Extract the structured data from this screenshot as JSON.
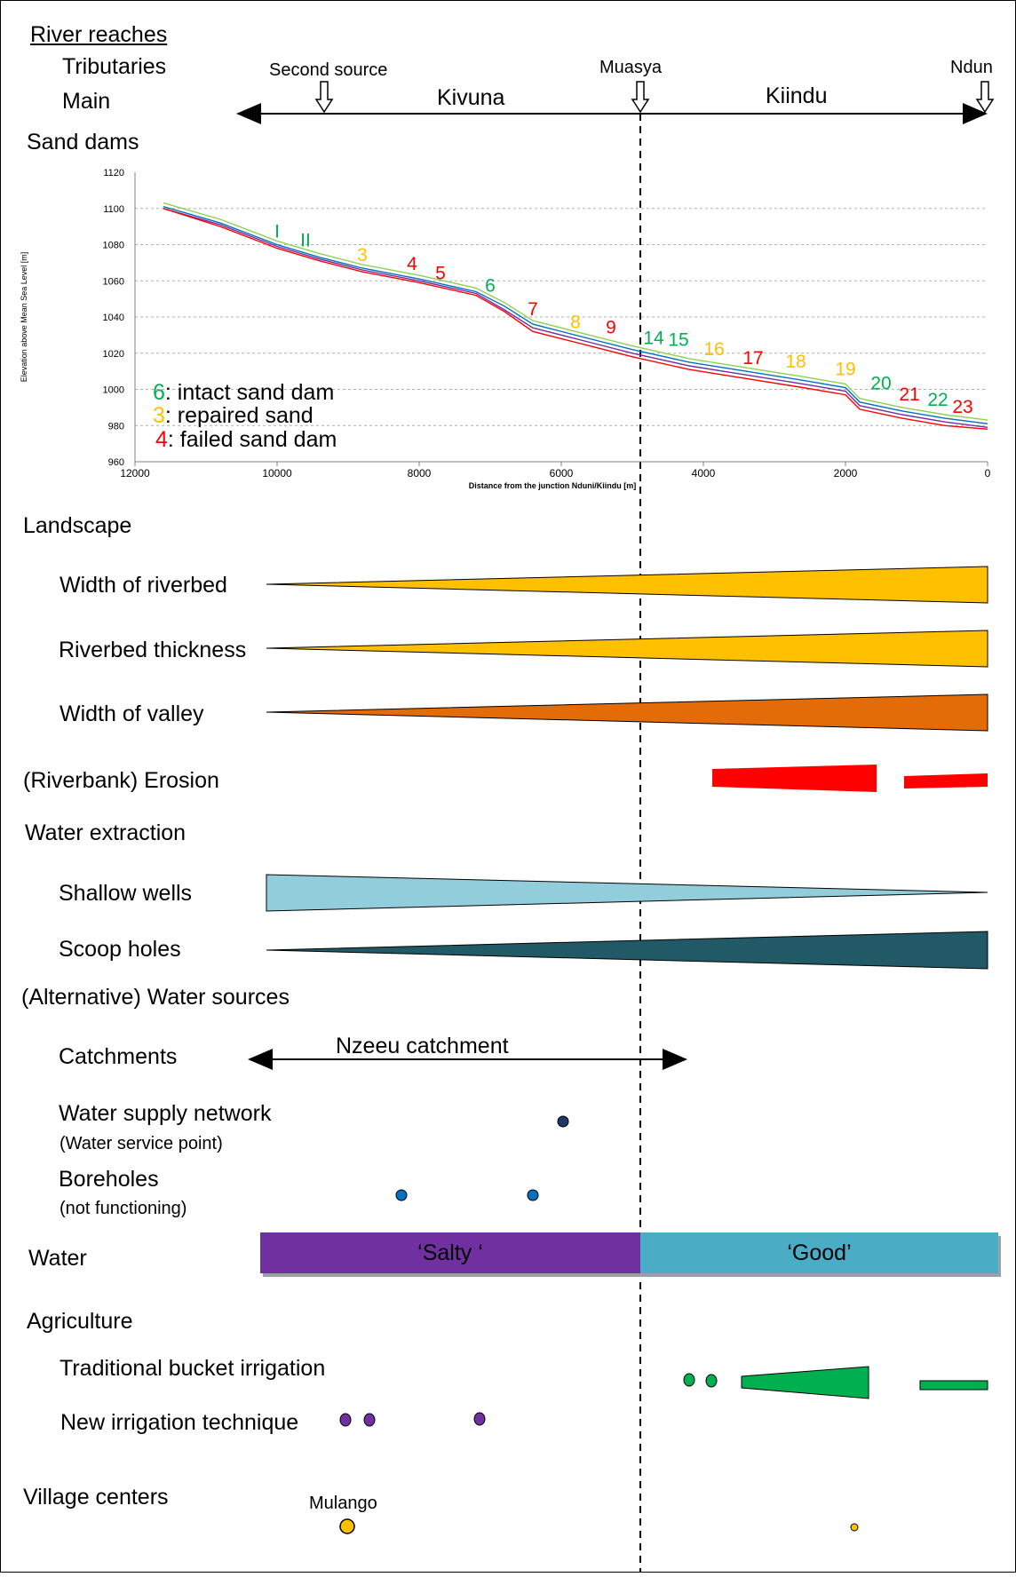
{
  "sections": {
    "river_reaches": "River reaches",
    "tributaries": "Tributaries",
    "main": "Main",
    "sand_dams": "Sand dams",
    "landscape": "Landscape",
    "width_riverbed": "Width of riverbed",
    "riverbed_thickness": "Riverbed thickness",
    "width_valley": "Width of valley",
    "erosion": "(Riverbank) Erosion",
    "water_extraction": "Water extraction",
    "shallow_wells": "Shallow wells",
    "scoop_holes": "Scoop holes",
    "alt_water": "(Alternative) Water sources",
    "catchments": "Catchments",
    "water_supply": "Water supply network",
    "water_supply_sub": "(Water service point)",
    "boreholes": "Boreholes",
    "boreholes_sub": "(not functioning)",
    "water": "Water",
    "agriculture": "Agriculture",
    "bucket_irrigation": "Traditional bucket irrigation",
    "new_irrigation": "New irrigation technique",
    "village_centers": "Village centers"
  },
  "river": {
    "second_source": "Second source",
    "muasya": "Muasya",
    "nduni": "Ndun",
    "kivuna": "Kivuna",
    "kiindu": "Kiindu"
  },
  "catchment_label": "Nzeeu catchment",
  "water_quality": {
    "salty": "‘Salty ‘",
    "good": "‘Good’",
    "salty_color": "#7030a0",
    "good_color": "#4bacc6"
  },
  "village": {
    "mulango": "Mulango"
  },
  "legend": {
    "intact_num": "6",
    "intact_text": ": intact sand dam",
    "repaired_num": "3",
    "repaired_text": ": repaired sand",
    "failed_num": "4",
    "failed_text": ": failed sand dam"
  },
  "colors": {
    "intact": "#00b050",
    "repaired": "#ffc000",
    "failed": "#ff0000",
    "riverbed": "#ffc000",
    "valley": "#e36c09",
    "erosion": "#ff0000",
    "wells": "#92cddc",
    "scoop": "#215967",
    "bucket": "#00b050",
    "new_irrigation": "#7030a0",
    "borehole": "#0070c0",
    "supply_point": "#1f3864",
    "village": "#ffc000"
  },
  "chart_data": {
    "type": "line",
    "title": "",
    "xlabel": "Distance from the junction Nduni/Kiindu [m]",
    "ylabel": "Elevation above Mean Sea Level [m]",
    "xlim": [
      12000,
      0
    ],
    "ylim": [
      960,
      1120
    ],
    "x_ticks": [
      "12000",
      "10000",
      "8000",
      "6000",
      "4000",
      "2000",
      "0"
    ],
    "y_ticks": [
      "960",
      "980",
      "1000",
      "1020",
      "1040",
      "1060",
      "1080",
      "1100",
      "1120"
    ],
    "grid": true,
    "series": [
      {
        "color": "#92d050",
        "x": [
          11600,
          10800,
          10000,
          9400,
          8800,
          8000,
          7200,
          6800,
          6400,
          5600,
          5000,
          4200,
          3400,
          2600,
          2000,
          1800,
          1200,
          600,
          0
        ],
        "y": [
          1103,
          1094,
          1082,
          1075,
          1069,
          1063,
          1056,
          1048,
          1038,
          1030,
          1024,
          1017,
          1012,
          1007,
          1003,
          995,
          990,
          986,
          983
        ]
      },
      {
        "color": "#0070c0",
        "x": [
          11600,
          10800,
          10000,
          9400,
          8800,
          8000,
          7200,
          6800,
          6400,
          5600,
          5000,
          4200,
          3400,
          2600,
          2000,
          1800,
          1200,
          600,
          0
        ],
        "y": [
          1101,
          1092,
          1080,
          1073,
          1067,
          1061,
          1054,
          1046,
          1036,
          1028,
          1022,
          1015,
          1010,
          1005,
          1001,
          993,
          988,
          984,
          981
        ]
      },
      {
        "color": "#7030a0",
        "x": [
          11600,
          10800,
          10000,
          9400,
          8800,
          8000,
          7200,
          6800,
          6400,
          5600,
          5000,
          4200,
          3400,
          2600,
          2000,
          1800,
          1200,
          600,
          0
        ],
        "y": [
          1100,
          1091,
          1079,
          1072,
          1066,
          1060,
          1053,
          1044,
          1034,
          1026,
          1020,
          1013,
          1008,
          1003,
          999,
          991,
          986,
          982,
          979
        ]
      },
      {
        "color": "#ff0000",
        "x": [
          11600,
          10800,
          10000,
          9400,
          8800,
          8000,
          7200,
          6800,
          6400,
          5600,
          5000,
          4200,
          3400,
          2600,
          2000,
          1800,
          1200,
          600,
          0
        ],
        "y": [
          1100,
          1090,
          1078,
          1071,
          1065,
          1059,
          1052,
          1043,
          1032,
          1024,
          1018,
          1011,
          1006,
          1001,
          997,
          989,
          984,
          980,
          978
        ]
      }
    ],
    "dams": [
      {
        "label": "I",
        "status": "intact",
        "x": 10000,
        "y": 1082
      },
      {
        "label": "II",
        "status": "intact",
        "x": 9600,
        "y": 1077
      },
      {
        "label": "3",
        "status": "repaired",
        "x": 8800,
        "y": 1069
      },
      {
        "label": "4",
        "status": "failed",
        "x": 8100,
        "y": 1064
      },
      {
        "label": "5",
        "status": "failed",
        "x": 7700,
        "y": 1059
      },
      {
        "label": "6",
        "status": "intact",
        "x": 7000,
        "y": 1052
      },
      {
        "label": "7",
        "status": "failed",
        "x": 6400,
        "y": 1039
      },
      {
        "label": "8",
        "status": "repaired",
        "x": 5800,
        "y": 1032
      },
      {
        "label": "9",
        "status": "failed",
        "x": 5300,
        "y": 1029
      },
      {
        "label": "14",
        "status": "intact",
        "x": 4700,
        "y": 1023
      },
      {
        "label": "15",
        "status": "intact",
        "x": 4350,
        "y": 1022
      },
      {
        "label": "16",
        "status": "repaired",
        "x": 3850,
        "y": 1017
      },
      {
        "label": "17",
        "status": "failed",
        "x": 3300,
        "y": 1012
      },
      {
        "label": "18",
        "status": "repaired",
        "x": 2700,
        "y": 1010
      },
      {
        "label": "19",
        "status": "repaired",
        "x": 2000,
        "y": 1006
      },
      {
        "label": "20",
        "status": "intact",
        "x": 1500,
        "y": 998
      },
      {
        "label": "21",
        "status": "failed",
        "x": 1100,
        "y": 992
      },
      {
        "label": "22",
        "status": "intact",
        "x": 700,
        "y": 989
      },
      {
        "label": "23",
        "status": "failed",
        "x": 350,
        "y": 985
      }
    ]
  }
}
